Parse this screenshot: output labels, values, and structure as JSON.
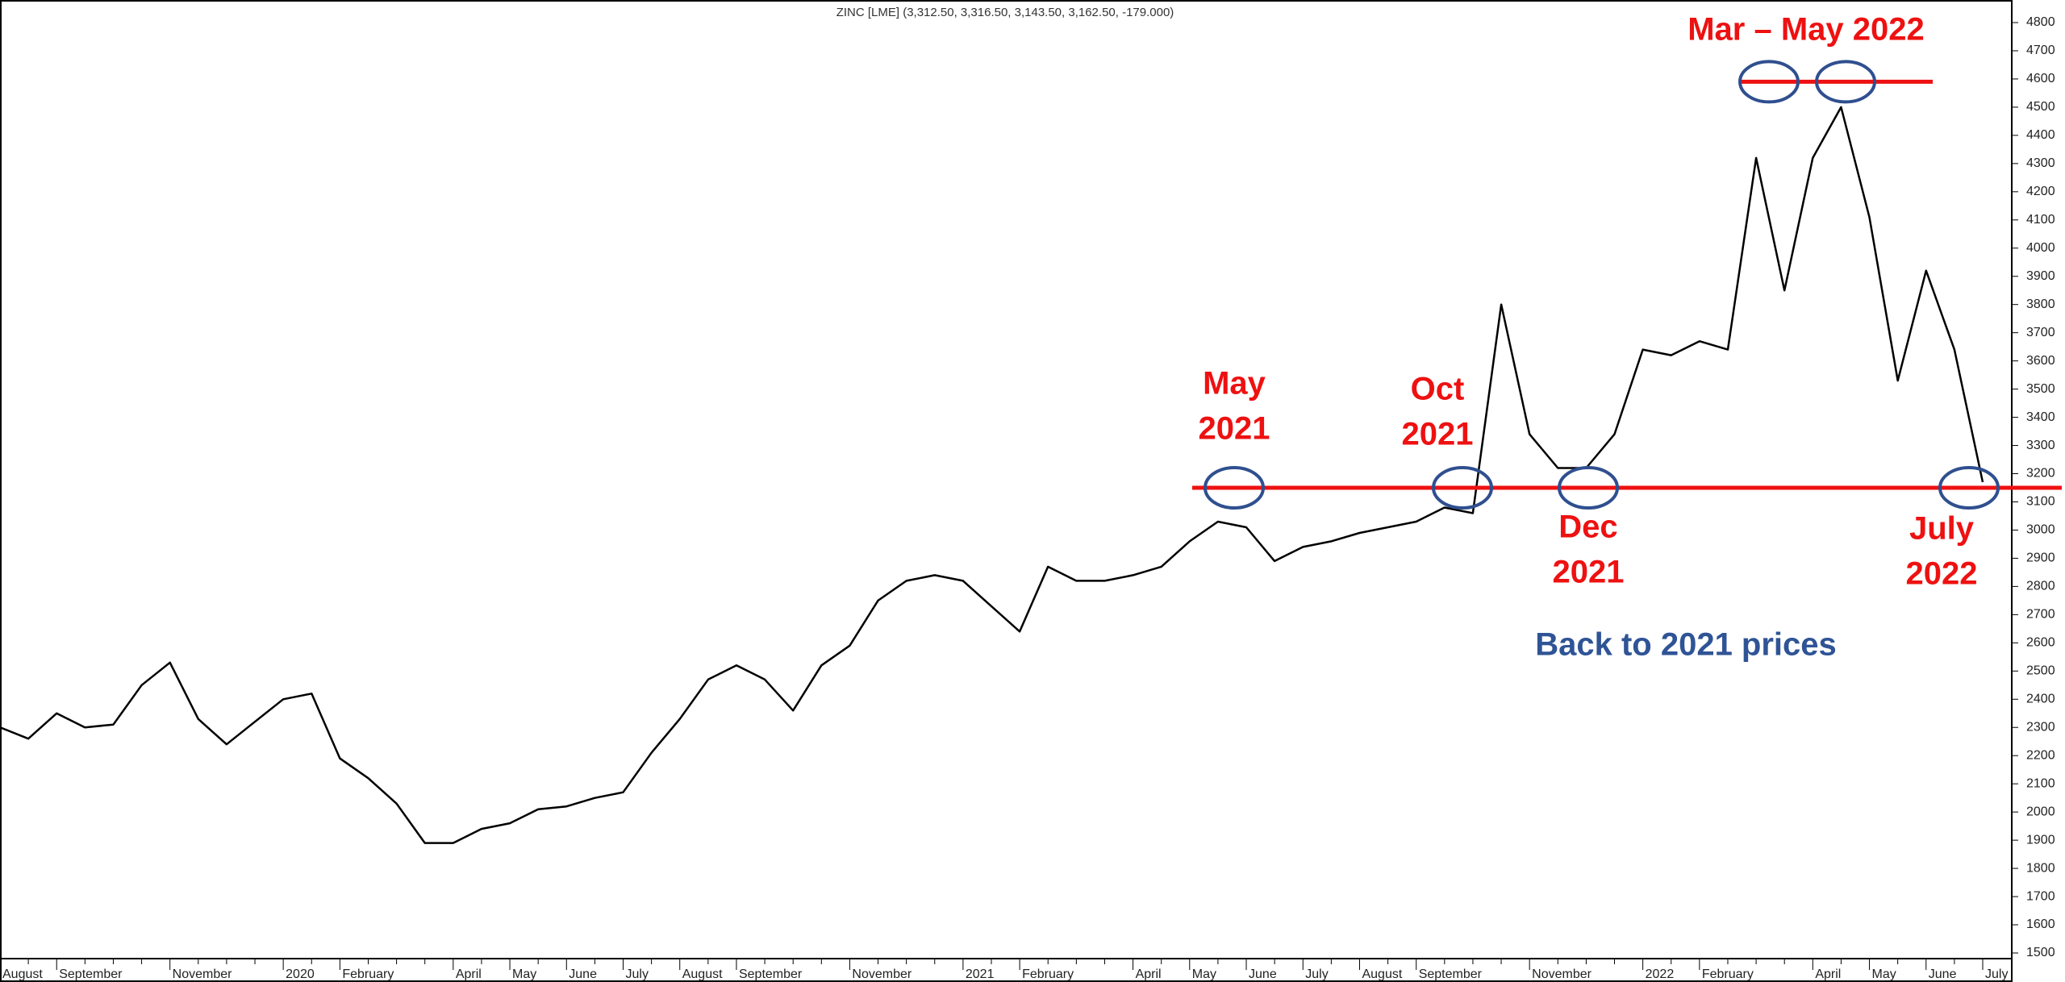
{
  "chart_data": {
    "type": "line",
    "title": "ZINC [LME] (3,312.50, 3,316.50, 3,143.50, 3,162.50, -179.000)",
    "categories": [
      "August",
      null,
      "September",
      null,
      null,
      null,
      "November",
      null,
      null,
      null,
      "2020",
      null,
      "February",
      null,
      null,
      null,
      "April",
      null,
      "May",
      null,
      "June",
      null,
      "July",
      null,
      "August",
      null,
      "September",
      null,
      null,
      null,
      "November",
      null,
      null,
      null,
      "2021",
      null,
      "February",
      null,
      null,
      null,
      "April",
      null,
      "May",
      null,
      "June",
      null,
      "July",
      null,
      "August",
      null,
      "September",
      null,
      null,
      null,
      "November",
      null,
      null,
      null,
      "2022",
      null,
      "February",
      null,
      null,
      null,
      "April",
      null,
      "May",
      null,
      "June",
      null,
      "July"
    ],
    "values": [
      2300,
      2260,
      2350,
      2300,
      2310,
      2450,
      2530,
      2330,
      2240,
      2320,
      2400,
      2420,
      2190,
      2120,
      2030,
      1890,
      1890,
      1940,
      1960,
      2010,
      2020,
      2050,
      2070,
      2210,
      2330,
      2470,
      2520,
      2470,
      2360,
      2520,
      2590,
      2750,
      2820,
      2840,
      2820,
      2730,
      2640,
      2870,
      2820,
      2820,
      2840,
      2870,
      2960,
      3030,
      3010,
      2890,
      2940,
      2960,
      2990,
      3010,
      3030,
      3080,
      3060,
      3800,
      3340,
      3220,
      3220,
      3340,
      3640,
      3620,
      3670,
      3640,
      4320,
      3850,
      4320,
      4500,
      4110,
      3530,
      3920,
      3640,
      3170
    ],
    "color": "#000000",
    "ylim": [
      1500,
      4800
    ],
    "yticks": [
      1500,
      1600,
      1700,
      1800,
      1900,
      2000,
      2100,
      2200,
      2300,
      2400,
      2500,
      2600,
      2700,
      2800,
      2900,
      3000,
      3100,
      3200,
      3300,
      3400,
      3500,
      3600,
      3700,
      3800,
      3900,
      4000,
      4100,
      4200,
      4300,
      4400,
      4500,
      4600,
      4700,
      4800
    ],
    "grid": false,
    "levels": [
      {
        "value": 3150,
        "color": "#ee1111"
      },
      {
        "value": 4590,
        "color": "#ee1111"
      }
    ],
    "annotations": [
      {
        "lines": [
          "May",
          "2021"
        ],
        "color": "#ee1111"
      },
      {
        "lines": [
          "Oct",
          "2021"
        ],
        "color": "#ee1111"
      },
      {
        "lines": [
          "Dec",
          "2021"
        ],
        "color": "#ee1111"
      },
      {
        "lines": [
          "July",
          "2022"
        ],
        "color": "#ee1111"
      },
      {
        "lines": [
          "Mar – May 2022"
        ],
        "color": "#ee1111"
      },
      {
        "lines": [
          "Back to 2021 prices"
        ],
        "color": "#2f5496"
      }
    ]
  }
}
